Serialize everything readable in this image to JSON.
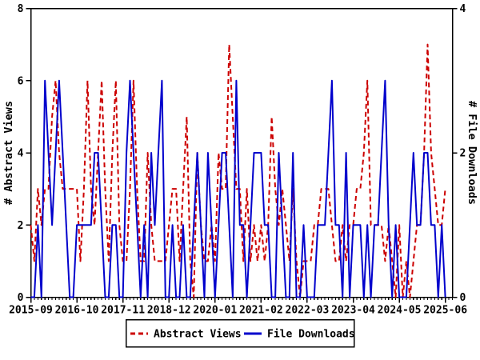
{
  "chart_data": {
    "type": "line",
    "title": "",
    "x_axis": {
      "start_month": "2015-09",
      "end_month": "2025-06",
      "months_total": 118,
      "axis_slots": 120,
      "tick_labels": [
        "2015-09",
        "2016-10",
        "2017-11",
        "2018-12",
        "2020-01",
        "2021-02",
        "2022-03",
        "2023-04",
        "2024-05",
        "2025-06"
      ],
      "major_tick_every_months": 13,
      "minor_tick_every_months": 1
    },
    "left_axis": {
      "label": "# Abstract Views",
      "min": 0,
      "max": 8,
      "tick_labels": [
        "0",
        "2",
        "4",
        "6",
        "8"
      ],
      "tick_values": [
        0,
        2,
        4,
        6,
        8
      ]
    },
    "right_axis": {
      "label": "# File Downloads",
      "min": 0,
      "max": 4,
      "tick_labels": [
        "0",
        "2",
        "4"
      ],
      "tick_values": [
        0,
        2,
        4
      ]
    },
    "grid": false,
    "frame": true,
    "series": [
      {
        "name": "Abstract Views",
        "axis": "left",
        "color": "#cc0000",
        "style": "dashed",
        "values": [
          2,
          1,
          3,
          2,
          3,
          3,
          5,
          6,
          4,
          3,
          3,
          3,
          3,
          3,
          1,
          3,
          6,
          3,
          2,
          4,
          6,
          3,
          1,
          4,
          6,
          2,
          1,
          1,
          3,
          6,
          3,
          1,
          1,
          4,
          2,
          1,
          1,
          1,
          1,
          2,
          3,
          3,
          1,
          3,
          5,
          1,
          0,
          4,
          2,
          1,
          1,
          2,
          1,
          4,
          3,
          3,
          7,
          5,
          3,
          3,
          1,
          3,
          1,
          2,
          1,
          2,
          1,
          2,
          5,
          3,
          2,
          3,
          2,
          1,
          3,
          1,
          0,
          1,
          1,
          1,
          2,
          2,
          3,
          3,
          3,
          2,
          1,
          1,
          2,
          1,
          2,
          2,
          3,
          3,
          4,
          6,
          2,
          2,
          2,
          2,
          1,
          2,
          1,
          0,
          2,
          0,
          1,
          0,
          1,
          2,
          2,
          4,
          7,
          4,
          3,
          2,
          2,
          3
        ]
      },
      {
        "name": "File Downloads",
        "axis": "right",
        "color": "#0000cc",
        "style": "solid",
        "values": [
          0,
          0,
          1,
          0,
          3,
          2,
          1,
          2,
          3,
          2,
          1,
          0,
          0,
          1,
          1,
          1,
          1,
          1,
          2,
          2,
          1,
          0,
          0,
          1,
          1,
          0,
          0,
          2,
          3,
          2,
          1,
          0,
          1,
          0,
          2,
          1,
          2,
          3,
          0,
          0,
          1,
          0,
          0,
          1,
          0,
          0,
          1,
          2,
          1,
          0,
          2,
          1,
          0,
          1,
          2,
          2,
          1,
          0,
          3,
          1,
          1,
          0,
          1,
          2,
          2,
          2,
          1,
          1,
          0,
          0,
          2,
          1,
          0,
          0,
          2,
          0,
          0,
          1,
          0,
          0,
          0,
          1,
          1,
          1,
          2,
          3,
          1,
          1,
          0,
          2,
          0,
          1,
          1,
          1,
          0,
          1,
          0,
          1,
          1,
          2,
          3,
          1,
          0,
          1,
          0,
          0,
          0,
          1,
          2,
          1,
          1,
          2,
          2,
          1,
          1,
          0,
          1,
          0
        ]
      }
    ],
    "legend": {
      "position": "bottom-center",
      "items": [
        {
          "label": "Abstract Views",
          "color": "#cc0000",
          "style": "dashed"
        },
        {
          "label": "File Downloads",
          "color": "#0000cc",
          "style": "solid"
        }
      ]
    }
  }
}
